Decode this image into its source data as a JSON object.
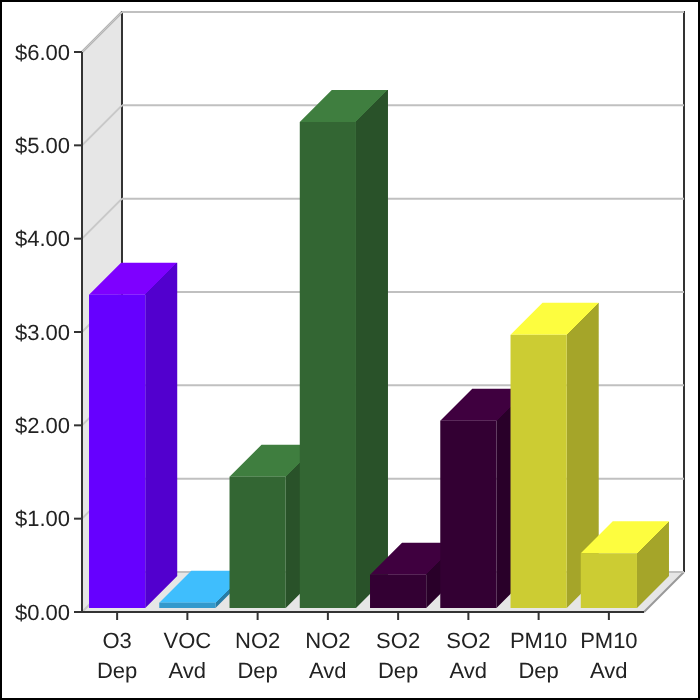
{
  "chart_data": {
    "type": "bar",
    "categories": [
      "O3 Dep",
      "VOC Avd",
      "NO2 Dep",
      "NO2 Avd",
      "SO2 Dep",
      "SO2 Avd",
      "PM10 Dep",
      "PM10 Avd"
    ],
    "values": [
      3.4,
      0.1,
      1.45,
      5.25,
      0.4,
      2.05,
      2.97,
      0.63
    ],
    "colors": [
      "#6600ff",
      "#3399cc",
      "#336633",
      "#336633",
      "#330033",
      "#330033",
      "#cccc33",
      "#cccc33"
    ],
    "ylim": [
      0,
      6
    ],
    "yticks": [
      {
        "value": 0,
        "label": "$0.00"
      },
      {
        "value": 1,
        "label": "$1.00"
      },
      {
        "value": 2,
        "label": "$2.00"
      },
      {
        "value": 3,
        "label": "$3.00"
      },
      {
        "value": 4,
        "label": "$4.00"
      },
      {
        "value": 5,
        "label": "$5.00"
      },
      {
        "value": 6,
        "label": "$6.00"
      }
    ],
    "grid": "y"
  }
}
